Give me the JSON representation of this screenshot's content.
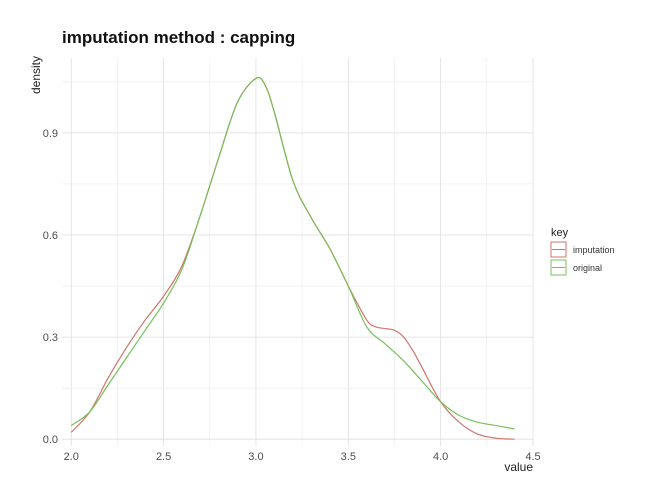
{
  "chart_data": {
    "type": "line",
    "title": "imputation method : capping",
    "xlabel": "value",
    "ylabel": "density",
    "xlim": [
      1.95,
      4.5
    ],
    "ylim": [
      -0.02,
      1.12
    ],
    "xticks": [
      2.0,
      2.5,
      3.0,
      3.5,
      4.0,
      4.5
    ],
    "xtick_labels": [
      "2.0",
      "2.5",
      "3.0",
      "3.5",
      "4.0",
      "4.5"
    ],
    "yticks": [
      0.0,
      0.3,
      0.6,
      0.9
    ],
    "ytick_labels": [
      "0.0",
      "0.3",
      "0.6",
      "0.9"
    ],
    "grid": true,
    "legend": {
      "title": "key",
      "placement": "right"
    },
    "series": [
      {
        "name": "imputation",
        "color": "#d0756b",
        "x": [
          2.0,
          2.1,
          2.2,
          2.3,
          2.4,
          2.5,
          2.6,
          2.7,
          2.8,
          2.9,
          3.0,
          3.05,
          3.1,
          3.2,
          3.3,
          3.4,
          3.5,
          3.6,
          3.65,
          3.7,
          3.75,
          3.8,
          3.85,
          3.9,
          4.0,
          4.1,
          4.2,
          4.3,
          4.4
        ],
        "y": [
          0.02,
          0.08,
          0.18,
          0.27,
          0.35,
          0.42,
          0.51,
          0.66,
          0.83,
          0.99,
          1.06,
          1.04,
          0.96,
          0.76,
          0.65,
          0.56,
          0.45,
          0.35,
          0.33,
          0.325,
          0.32,
          0.3,
          0.26,
          0.21,
          0.11,
          0.05,
          0.015,
          0.003,
          0.0
        ]
      },
      {
        "name": "original",
        "color": "#76c05a",
        "x": [
          2.0,
          2.1,
          2.2,
          2.3,
          2.4,
          2.5,
          2.6,
          2.7,
          2.8,
          2.9,
          3.0,
          3.05,
          3.1,
          3.2,
          3.3,
          3.4,
          3.5,
          3.6,
          3.7,
          3.8,
          3.9,
          4.0,
          4.1,
          4.2,
          4.3,
          4.4
        ],
        "y": [
          0.04,
          0.08,
          0.16,
          0.24,
          0.32,
          0.4,
          0.5,
          0.66,
          0.83,
          0.99,
          1.06,
          1.04,
          0.96,
          0.76,
          0.65,
          0.56,
          0.45,
          0.33,
          0.28,
          0.23,
          0.17,
          0.11,
          0.07,
          0.05,
          0.04,
          0.03
        ]
      }
    ]
  }
}
